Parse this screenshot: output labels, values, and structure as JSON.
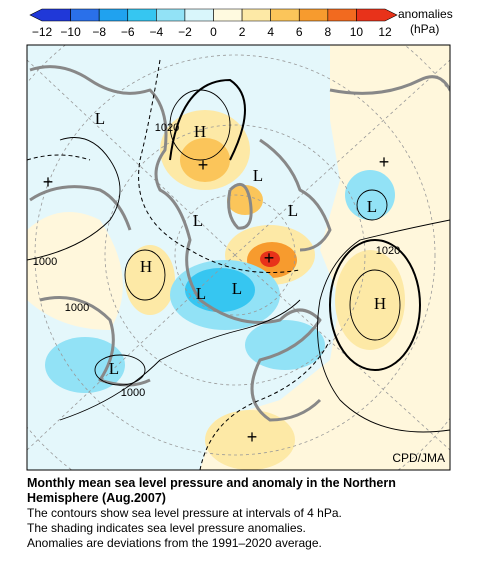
{
  "colorbar": {
    "ticks": [
      {
        "value": -12,
        "label": "−12"
      },
      {
        "value": -10,
        "label": "−10"
      },
      {
        "value": -8,
        "label": "−8"
      },
      {
        "value": -6,
        "label": "−6"
      },
      {
        "value": -4,
        "label": "−4"
      },
      {
        "value": -2,
        "label": "−2"
      },
      0,
      2,
      4,
      6,
      8,
      10,
      12
    ],
    "colors": [
      "#2038d8",
      "#2a70ea",
      "#20a2ef",
      "#36c6f1",
      "#92e2f6",
      "#d9f6fb",
      "#fffae0",
      "#fde9a6",
      "#fbc55a",
      "#f79b2e",
      "#f26a1f",
      "#e8321a"
    ],
    "label": "anomalies",
    "unit": "(hPa)"
  },
  "map": {
    "labels": [
      "H",
      "H",
      "H",
      "L",
      "L",
      "L",
      "L",
      "L",
      "L",
      "L",
      "L",
      "1020",
      "1020",
      "1000",
      "1000",
      "1000"
    ],
    "credit": "CPD/JMA"
  },
  "caption": {
    "title": "Monthly mean sea level pressure and anomaly in the Northern Hemisphere (Aug.2007)",
    "lines": [
      "The contours show sea level pressure at intervals of 4 hPa.",
      "The shading indicates sea level pressure anomalies.",
      "Anomalies are deviations from the 1991–2020 average."
    ]
  }
}
